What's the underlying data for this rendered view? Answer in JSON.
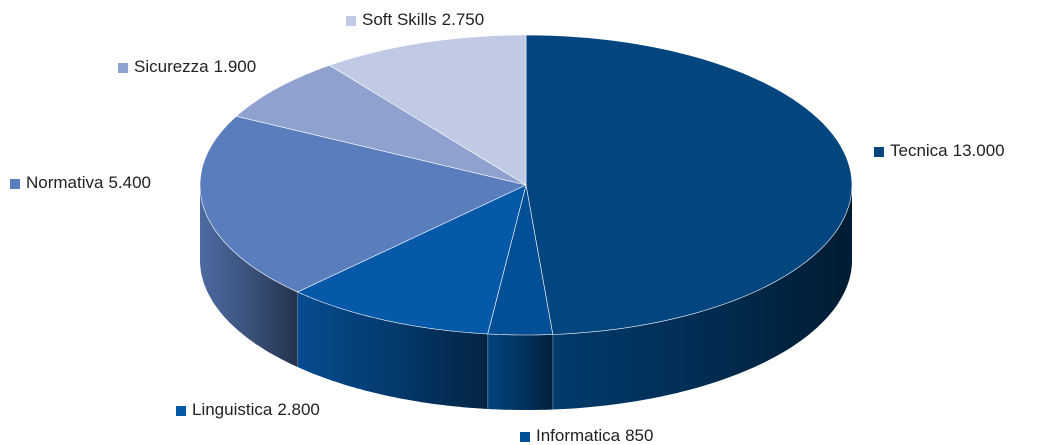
{
  "chart_data": {
    "type": "pie3d",
    "categories": [
      "Tecnica",
      "Informatica",
      "Linguistica",
      "Normativa",
      "Sicurezza",
      "Soft Skills"
    ],
    "values": [
      13000,
      850,
      2800,
      5400,
      1900,
      2750
    ],
    "value_labels": [
      "13.000",
      "850",
      "2.800",
      "5.400",
      "1.900",
      "2.750"
    ],
    "colors": [
      "#02457f",
      "#034f96",
      "#0659a8",
      "#5a7dbd",
      "#8fa2cf",
      "#c1cae4"
    ]
  }
}
